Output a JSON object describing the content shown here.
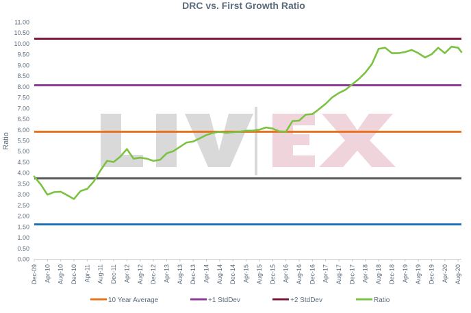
{
  "chart_data": {
    "type": "line",
    "title": "DRC vs. First Growth Ratio",
    "xlabel": "",
    "ylabel": "Ratio",
    "ylim": [
      0,
      11
    ],
    "y_ticks": [
      "0.00",
      "0.50",
      "1.00",
      "1.50",
      "2.00",
      "2.50",
      "3.00",
      "3.50",
      "4.00",
      "4.50",
      "5.00",
      "5.50",
      "6.00",
      "6.50",
      "7.00",
      "7.50",
      "8.00",
      "8.50",
      "9.00",
      "9.50",
      "10.00",
      "10.50",
      "11.00"
    ],
    "x_ticks": [
      "Dec-09",
      "Apr-10",
      "Aug-10",
      "Dec-10",
      "Apr-11",
      "Aug-11",
      "Dec-11",
      "Apr-12",
      "Aug-12",
      "Dec-12",
      "Apr-13",
      "Aug-13",
      "Dec-13",
      "Apr-14",
      "Aug-14",
      "Dec-14",
      "Apr-15",
      "Aug-15",
      "Dec-15",
      "Apr-16",
      "Aug-16",
      "Dec-16",
      "Apr-17",
      "Aug-17",
      "Dec-17",
      "Apr-18",
      "Aug-18",
      "Dec-18",
      "Apr-19",
      "Aug-19",
      "Dec-19",
      "Apr-20",
      "Aug-20"
    ],
    "grid": false,
    "legend_position": "bottom",
    "watermark": "LIV-EX",
    "reference_lines": [
      {
        "name": "",
        "value": 10.22,
        "color": "#7b1a3a",
        "in_legend": false
      },
      {
        "name": "",
        "value": 8.06,
        "color": "#8e3a99",
        "in_legend": false
      },
      {
        "name": "",
        "value": 5.9,
        "color": "#e8731f",
        "in_legend": false
      },
      {
        "name": "",
        "value": 3.74,
        "color": "#555555",
        "in_legend": false
      },
      {
        "name": "",
        "value": 1.6,
        "color": "#1f6fb5",
        "in_legend": false
      }
    ],
    "legend": [
      {
        "name": "10 Year Average",
        "color": "#e8731f"
      },
      {
        "name": "+1 StdDev",
        "color": "#8e3a99"
      },
      {
        "name": "+2 StdDev",
        "color": "#7b1a3a"
      },
      {
        "name": "Ratio",
        "color": "#7cc242"
      }
    ],
    "series": [
      {
        "name": "Ratio",
        "color": "#7cc242",
        "x": [
          "Dec-09",
          "Feb-10",
          "Apr-10",
          "Jun-10",
          "Aug-10",
          "Oct-10",
          "Dec-10",
          "Feb-11",
          "Apr-11",
          "Jun-11",
          "Aug-11",
          "Oct-11",
          "Dec-11",
          "Feb-12",
          "Apr-12",
          "Jun-12",
          "Aug-12",
          "Oct-12",
          "Dec-12",
          "Feb-13",
          "Apr-13",
          "Jun-13",
          "Aug-13",
          "Oct-13",
          "Dec-13",
          "Feb-14",
          "Apr-14",
          "Jun-14",
          "Aug-14",
          "Oct-14",
          "Dec-14",
          "Feb-15",
          "Apr-15",
          "Jun-15",
          "Aug-15",
          "Oct-15",
          "Dec-15",
          "Feb-16",
          "Apr-16",
          "Jun-16",
          "Aug-16",
          "Oct-16",
          "Dec-16",
          "Feb-17",
          "Apr-17",
          "Jun-17",
          "Aug-17",
          "Oct-17",
          "Dec-17",
          "Feb-18",
          "Apr-18",
          "Jun-18",
          "Aug-18",
          "Oct-18",
          "Dec-18",
          "Feb-19",
          "Apr-19",
          "Jun-19",
          "Aug-19",
          "Oct-19",
          "Dec-19",
          "Feb-20",
          "Apr-20",
          "Jun-20",
          "Aug-20",
          "Sep-20"
        ],
        "values": [
          3.82,
          3.45,
          2.98,
          3.1,
          3.12,
          2.95,
          2.78,
          3.15,
          3.25,
          3.6,
          4.1,
          4.55,
          4.5,
          4.75,
          5.1,
          4.65,
          4.7,
          4.65,
          4.55,
          4.6,
          4.9,
          5.0,
          5.2,
          5.4,
          5.45,
          5.6,
          5.75,
          5.85,
          5.9,
          5.85,
          5.88,
          5.9,
          5.95,
          5.95,
          6.0,
          6.1,
          6.05,
          5.92,
          5.9,
          6.4,
          6.42,
          6.7,
          6.72,
          6.95,
          7.2,
          7.5,
          7.7,
          7.85,
          8.1,
          8.35,
          8.65,
          9.05,
          9.75,
          9.8,
          9.55,
          9.55,
          9.6,
          9.7,
          9.55,
          9.35,
          9.5,
          9.8,
          9.55,
          9.85,
          9.8,
          9.6
        ]
      }
    ]
  }
}
